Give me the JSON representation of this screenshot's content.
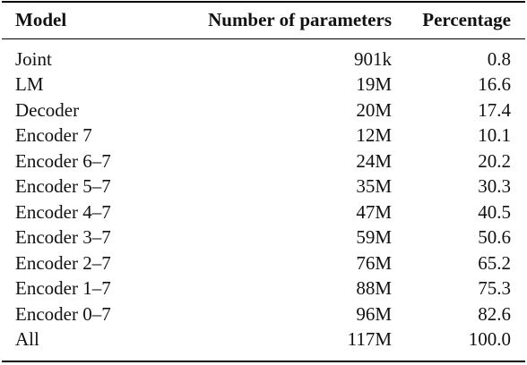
{
  "table": {
    "headers": {
      "model": "Model",
      "params": "Number of parameters",
      "percentage": "Percentage"
    },
    "rows": [
      {
        "model": "Joint",
        "params": "901k",
        "percentage": "0.8"
      },
      {
        "model": "LM",
        "params": "19M",
        "percentage": "16.6"
      },
      {
        "model": "Decoder",
        "params": "20M",
        "percentage": "17.4"
      },
      {
        "model": "Encoder 7",
        "params": "12M",
        "percentage": "10.1"
      },
      {
        "model": "Encoder 6–7",
        "params": "24M",
        "percentage": "20.2"
      },
      {
        "model": "Encoder 5–7",
        "params": "35M",
        "percentage": "30.3"
      },
      {
        "model": "Encoder 4–7",
        "params": "47M",
        "percentage": "40.5"
      },
      {
        "model": "Encoder 3–7",
        "params": "59M",
        "percentage": "50.6"
      },
      {
        "model": "Encoder 2–7",
        "params": "76M",
        "percentage": "65.2"
      },
      {
        "model": "Encoder 1–7",
        "params": "88M",
        "percentage": "75.3"
      },
      {
        "model": "Encoder 0–7",
        "params": "96M",
        "percentage": "82.6"
      },
      {
        "model": "All",
        "params": "117M",
        "percentage": "100.0"
      }
    ]
  }
}
